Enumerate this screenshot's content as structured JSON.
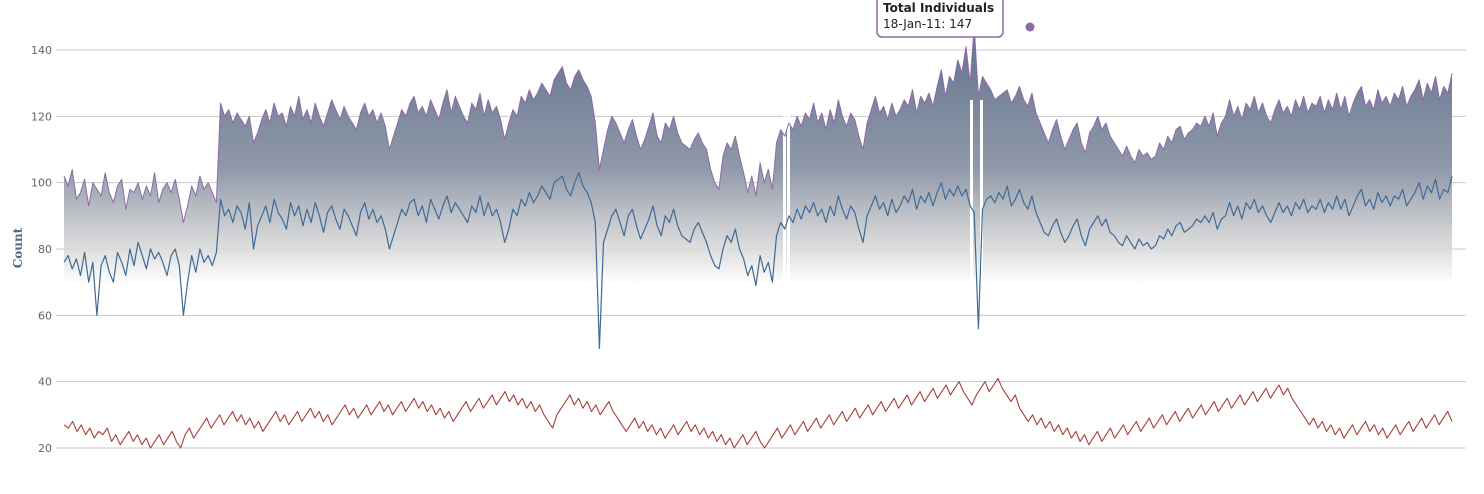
{
  "chart_data": {
    "type": "area",
    "ylabel": "Count",
    "y_ticks": [
      20,
      40,
      60,
      80,
      100,
      120,
      140
    ],
    "ylim": [
      15,
      150
    ],
    "grid": true,
    "tooltip": {
      "series": "Total Individuals",
      "date": "18-Jan-11",
      "value": "147",
      "text": "18-Jan-11: 147"
    },
    "colors": {
      "total": "#8e6aa8",
      "middle": "#3f6a96",
      "lower": "#a7403a",
      "area_top": "#60728e",
      "grid": "#c8c8c8"
    },
    "series": [
      {
        "key": "total",
        "name": "Total Individuals",
        "values": [
          102,
          99,
          104,
          95,
          97,
          101,
          93,
          100,
          98,
          96,
          103,
          97,
          94,
          99,
          101,
          92,
          98,
          97,
          100,
          95,
          99,
          96,
          103,
          94,
          98,
          100,
          97,
          101,
          95,
          88,
          93,
          99,
          96,
          102,
          98,
          100,
          97,
          94,
          124,
          120,
          122,
          118,
          121,
          119,
          117,
          120,
          112,
          115,
          119,
          122,
          118,
          124,
          120,
          121,
          117,
          123,
          120,
          126,
          119,
          122,
          118,
          124,
          120,
          117,
          121,
          125,
          122,
          119,
          123,
          120,
          118,
          116,
          121,
          124,
          120,
          122,
          118,
          121,
          117,
          110,
          114,
          118,
          122,
          120,
          124,
          126,
          121,
          123,
          120,
          125,
          122,
          119,
          124,
          128,
          121,
          126,
          123,
          120,
          118,
          124,
          122,
          127,
          120,
          125,
          121,
          123,
          119,
          113,
          118,
          122,
          120,
          126,
          124,
          128,
          125,
          127,
          130,
          128,
          126,
          131,
          133,
          135,
          130,
          128,
          132,
          134,
          131,
          129,
          126,
          118,
          104,
          110,
          116,
          120,
          118,
          115,
          112,
          116,
          119,
          114,
          110,
          113,
          117,
          121,
          114,
          112,
          118,
          116,
          120,
          115,
          112,
          111,
          110,
          113,
          115,
          112,
          110,
          104,
          100,
          98,
          108,
          112,
          110,
          114,
          108,
          103,
          97,
          102,
          96,
          106,
          100,
          104,
          98,
          112,
          116,
          114,
          118,
          116,
          120,
          117,
          121,
          119,
          124,
          118,
          121,
          116,
          122,
          118,
          125,
          120,
          117,
          121,
          119,
          114,
          110,
          118,
          122,
          126,
          121,
          123,
          119,
          124,
          120,
          122,
          125,
          123,
          128,
          121,
          126,
          124,
          127,
          123,
          129,
          134,
          126,
          132,
          130,
          137,
          133,
          141,
          130,
          147,
          126,
          132,
          130,
          128,
          125,
          126,
          127,
          128,
          124,
          126,
          129,
          125,
          123,
          127,
          121,
          118,
          115,
          112,
          116,
          119,
          114,
          110,
          113,
          116,
          118,
          112,
          109,
          115,
          117,
          120,
          116,
          118,
          114,
          112,
          110,
          108,
          111,
          108,
          106,
          110,
          108,
          109,
          107,
          108,
          112,
          110,
          114,
          112,
          116,
          117,
          113,
          115,
          116,
          118,
          117,
          120,
          117,
          121,
          114,
          118,
          120,
          125,
          120,
          123,
          119,
          124,
          122,
          126,
          121,
          124,
          120,
          118,
          122,
          125,
          121,
          123,
          120,
          125,
          122,
          126,
          121,
          124,
          123,
          126,
          121,
          125,
          122,
          127,
          122,
          126,
          120,
          124,
          127,
          129,
          123,
          125,
          122,
          128,
          124,
          126,
          123,
          127,
          125,
          129,
          123,
          126,
          128,
          131,
          125,
          130,
          127,
          132,
          125,
          129,
          127,
          133
        ],
        "style": "area+line"
      },
      {
        "key": "middle",
        "name": "",
        "values": [
          76,
          78,
          74,
          77,
          72,
          79,
          70,
          76,
          60,
          75,
          78,
          73,
          70,
          79,
          76,
          72,
          80,
          75,
          82,
          78,
          74,
          80,
          77,
          79,
          76,
          72,
          78,
          80,
          75,
          60,
          70,
          78,
          73,
          80,
          76,
          78,
          75,
          79,
          95,
          90,
          92,
          88,
          93,
          91,
          86,
          94,
          80,
          87,
          90,
          93,
          88,
          95,
          91,
          89,
          86,
          94,
          90,
          93,
          87,
          92,
          88,
          94,
          90,
          85,
          91,
          93,
          89,
          86,
          92,
          90,
          87,
          84,
          91,
          94,
          89,
          92,
          88,
          90,
          86,
          80,
          84,
          88,
          92,
          90,
          94,
          95,
          90,
          93,
          88,
          95,
          92,
          89,
          93,
          96,
          91,
          94,
          92,
          90,
          88,
          93,
          91,
          96,
          90,
          94,
          90,
          92,
          88,
          82,
          86,
          92,
          90,
          95,
          93,
          97,
          94,
          96,
          99,
          97,
          95,
          100,
          101,
          102,
          98,
          96,
          100,
          103,
          99,
          97,
          94,
          88,
          50,
          82,
          86,
          90,
          92,
          88,
          84,
          90,
          92,
          87,
          83,
          86,
          89,
          93,
          87,
          84,
          90,
          88,
          92,
          87,
          84,
          83,
          82,
          86,
          88,
          85,
          82,
          78,
          75,
          74,
          80,
          84,
          82,
          86,
          80,
          77,
          72,
          75,
          69,
          78,
          73,
          76,
          70,
          84,
          88,
          86,
          90,
          88,
          92,
          89,
          93,
          91,
          94,
          90,
          92,
          88,
          93,
          90,
          96,
          92,
          89,
          93,
          91,
          86,
          82,
          90,
          93,
          96,
          92,
          94,
          90,
          95,
          91,
          93,
          96,
          94,
          98,
          92,
          96,
          94,
          97,
          93,
          97,
          100,
          95,
          98,
          96,
          99,
          96,
          98,
          93,
          91,
          56,
          92,
          95,
          96,
          94,
          97,
          95,
          99,
          93,
          95,
          98,
          94,
          92,
          96,
          91,
          88,
          85,
          84,
          87,
          89,
          85,
          82,
          84,
          87,
          89,
          84,
          81,
          86,
          88,
          90,
          87,
          89,
          85,
          84,
          82,
          81,
          84,
          82,
          80,
          83,
          81,
          82,
          80,
          81,
          84,
          83,
          86,
          84,
          87,
          88,
          85,
          86,
          87,
          89,
          88,
          90,
          88,
          91,
          86,
          89,
          90,
          94,
          90,
          93,
          89,
          94,
          92,
          95,
          91,
          93,
          90,
          88,
          91,
          94,
          91,
          93,
          90,
          94,
          92,
          95,
          91,
          93,
          92,
          95,
          91,
          94,
          92,
          96,
          92,
          95,
          90,
          93,
          96,
          98,
          93,
          95,
          92,
          97,
          94,
          96,
          93,
          96,
          95,
          98,
          93,
          95,
          97,
          100,
          95,
          99,
          97,
          101,
          95,
          98,
          97,
          102
        ],
        "style": "line"
      },
      {
        "key": "lower",
        "name": "",
        "values": [
          27,
          26,
          28,
          25,
          27,
          24,
          26,
          23,
          25,
          24,
          26,
          22,
          24,
          21,
          23,
          25,
          22,
          24,
          21,
          23,
          20,
          22,
          24,
          21,
          23,
          25,
          22,
          20,
          24,
          26,
          23,
          25,
          27,
          29,
          26,
          28,
          30,
          27,
          29,
          31,
          28,
          30,
          27,
          29,
          26,
          28,
          25,
          27,
          29,
          31,
          28,
          30,
          27,
          29,
          31,
          28,
          30,
          32,
          29,
          31,
          28,
          30,
          27,
          29,
          31,
          33,
          30,
          32,
          29,
          31,
          33,
          30,
          32,
          34,
          31,
          33,
          30,
          32,
          34,
          31,
          33,
          35,
          32,
          34,
          31,
          33,
          30,
          32,
          29,
          31,
          28,
          30,
          32,
          34,
          31,
          33,
          35,
          32,
          34,
          36,
          33,
          35,
          37,
          34,
          36,
          33,
          35,
          32,
          34,
          31,
          33,
          30,
          28,
          26,
          30,
          32,
          34,
          36,
          33,
          35,
          32,
          34,
          31,
          33,
          30,
          32,
          34,
          31,
          29,
          27,
          25,
          27,
          29,
          26,
          28,
          25,
          27,
          24,
          26,
          23,
          25,
          27,
          24,
          26,
          28,
          25,
          27,
          24,
          26,
          23,
          25,
          22,
          24,
          21,
          23,
          20,
          22,
          24,
          21,
          23,
          25,
          22,
          20,
          22,
          24,
          26,
          23,
          25,
          27,
          24,
          26,
          28,
          25,
          27,
          29,
          26,
          28,
          30,
          27,
          29,
          31,
          28,
          30,
          32,
          29,
          31,
          33,
          30,
          32,
          34,
          31,
          33,
          35,
          32,
          34,
          36,
          33,
          35,
          37,
          34,
          36,
          38,
          35,
          37,
          39,
          36,
          38,
          40,
          37,
          35,
          33,
          36,
          38,
          40,
          37,
          39,
          41,
          38,
          36,
          34,
          36,
          32,
          30,
          28,
          30,
          27,
          29,
          26,
          28,
          25,
          27,
          24,
          26,
          23,
          25,
          22,
          24,
          21,
          23,
          25,
          22,
          24,
          26,
          23,
          25,
          27,
          24,
          26,
          28,
          25,
          27,
          29,
          26,
          28,
          30,
          27,
          29,
          31,
          28,
          30,
          32,
          29,
          31,
          33,
          30,
          32,
          34,
          31,
          33,
          35,
          32,
          34,
          36,
          33,
          35,
          37,
          34,
          36,
          38,
          35,
          37,
          39,
          36,
          38,
          35,
          33,
          31,
          29,
          27,
          29,
          26,
          28,
          25,
          27,
          24,
          26,
          23,
          25,
          27,
          24,
          26,
          28,
          25,
          27,
          24,
          26,
          23,
          25,
          27,
          24,
          26,
          28,
          25,
          27,
          29,
          26,
          28,
          30,
          27,
          29,
          31,
          28
        ],
        "style": "line"
      }
    ]
  }
}
